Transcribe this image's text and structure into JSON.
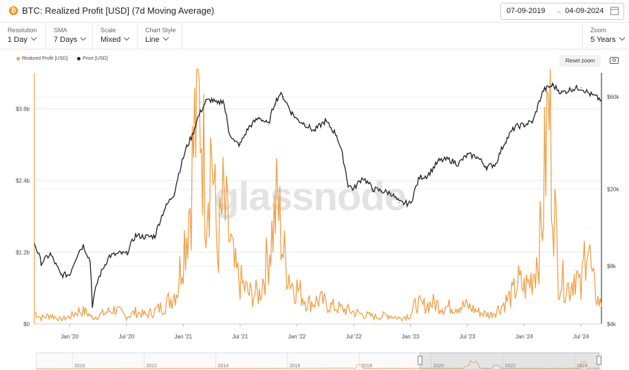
{
  "title": "BTC: Realized Profit [USD] (7d Moving Average)",
  "asset_icon": "btc-icon",
  "date_from": "07-09-2019",
  "date_to": "04-09-2024",
  "date_arrow": "→",
  "controls": [
    {
      "label": "Resolution",
      "value": "1 Day"
    },
    {
      "label": "SMA",
      "value": "7 Days"
    },
    {
      "label": "Scale",
      "value": "Mixed"
    },
    {
      "label": "Chart Style",
      "value": "Line"
    }
  ],
  "zoom": {
    "label": "Zoom",
    "value": "5 Years"
  },
  "reset_zoom": "Reset zoom",
  "watermark": "glassnode",
  "colors": {
    "profit": "#f0a045",
    "price": "#1e1e1e",
    "grid": "#e9e9e9"
  },
  "chart_data": {
    "type": "line",
    "title": "BTC: Realized Profit [USD] (7d Moving Average)",
    "legend": [
      "Realized Profit [USD]",
      "Price [USD]"
    ],
    "x_range": [
      2019.69,
      2024.68
    ],
    "x_ticks": [
      {
        "label": "Jan '20",
        "t": 2020.0
      },
      {
        "label": "Jul '20",
        "t": 2020.5
      },
      {
        "label": "Jan '21",
        "t": 2021.0
      },
      {
        "label": "Jul '21",
        "t": 2021.5
      },
      {
        "label": "Jan '22",
        "t": 2022.0
      },
      {
        "label": "Jul '22",
        "t": 2022.5
      },
      {
        "label": "Jan '23",
        "t": 2023.0
      },
      {
        "label": "Jul '23",
        "t": 2023.5
      },
      {
        "label": "Jan '24",
        "t": 2024.0
      },
      {
        "label": "Jul '24",
        "t": 2024.5
      }
    ],
    "y_left": {
      "min": 0,
      "max": 4200000000,
      "scale": "linear",
      "ticks": [
        {
          "label": "$0",
          "v": 0
        },
        {
          "label": "$1.2b",
          "v": 1200000000
        },
        {
          "label": "$2.4b",
          "v": 2400000000
        },
        {
          "label": "$3.6b",
          "v": 3600000000
        }
      ]
    },
    "y_right": {
      "min": 4000,
      "max": 80000,
      "scale": "log",
      "ticks": [
        {
          "label": "$4k",
          "v": 4000
        },
        {
          "label": "$8k",
          "v": 8000
        },
        {
          "label": "$20k",
          "v": 20000
        },
        {
          "label": "$60k",
          "v": 60000
        }
      ]
    },
    "series": [
      {
        "name": "Realized Profit [USD]",
        "axis": "left",
        "t": [
          2019.69,
          2019.75,
          2019.83,
          2019.92,
          2020.0,
          2020.08,
          2020.15,
          2020.2,
          2020.3,
          2020.4,
          2020.5,
          2020.58,
          2020.67,
          2020.75,
          2020.83,
          2020.9,
          2020.95,
          2021.0,
          2021.03,
          2021.06,
          2021.1,
          2021.15,
          2021.2,
          2021.25,
          2021.3,
          2021.35,
          2021.4,
          2021.45,
          2021.5,
          2021.58,
          2021.67,
          2021.72,
          2021.78,
          2021.83,
          2021.88,
          2021.95,
          2022.0,
          2022.1,
          2022.2,
          2022.3,
          2022.4,
          2022.5,
          2022.6,
          2022.7,
          2022.8,
          2022.9,
          2023.0,
          2023.05,
          2023.1,
          2023.2,
          2023.3,
          2023.4,
          2023.5,
          2023.6,
          2023.7,
          2023.8,
          2023.9,
          2023.95,
          2024.0,
          2024.05,
          2024.1,
          2024.15,
          2024.2,
          2024.22,
          2024.25,
          2024.3,
          2024.35,
          2024.4,
          2024.45,
          2024.5,
          2024.55,
          2024.6,
          2024.65,
          2024.68
        ],
        "v": [
          200000000.0,
          100000000.0,
          150000000.0,
          80000000.0,
          120000000.0,
          220000000.0,
          200000000.0,
          100000000.0,
          180000000.0,
          250000000.0,
          120000000.0,
          200000000.0,
          150000000.0,
          220000000.0,
          300000000.0,
          450000000.0,
          600000000.0,
          1300000000.0,
          1600000000.0,
          2100000000.0,
          3200000000.0,
          3700000000.0,
          2200000000.0,
          3000000000.0,
          1200000000.0,
          2000000000.0,
          1500000000.0,
          900000000.0,
          700000000.0,
          500000000.0,
          500000000.0,
          900000000.0,
          1500000000.0,
          2100000000.0,
          1200000000.0,
          700000000.0,
          600000000.0,
          350000000.0,
          400000000.0,
          300000000.0,
          250000000.0,
          200000000.0,
          150000000.0,
          120000000.0,
          150000000.0,
          100000000.0,
          150000000.0,
          350000000.0,
          300000000.0,
          350000000.0,
          280000000.0,
          300000000.0,
          300000000.0,
          200000000.0,
          150000000.0,
          300000000.0,
          500000000.0,
          700000000.0,
          600000000.0,
          700000000.0,
          1000000000.0,
          1500000000.0,
          3200000000.0,
          3600000000.0,
          2500000000.0,
          800000000.0,
          700000000.0,
          600000000.0,
          900000000.0,
          500000000.0,
          1600000000.0,
          700000000.0,
          400000000.0,
          300000000.0
        ]
      },
      {
        "name": "Price [USD]",
        "axis": "right",
        "t": [
          2019.69,
          2019.75,
          2019.83,
          2019.92,
          2020.0,
          2020.08,
          2020.12,
          2020.18,
          2020.2,
          2020.25,
          2020.35,
          2020.45,
          2020.5,
          2020.58,
          2020.67,
          2020.75,
          2020.83,
          2020.92,
          2021.0,
          2021.03,
          2021.08,
          2021.13,
          2021.2,
          2021.25,
          2021.3,
          2021.35,
          2021.4,
          2021.45,
          2021.5,
          2021.58,
          2021.67,
          2021.75,
          2021.8,
          2021.85,
          2021.88,
          2021.95,
          2022.0,
          2022.08,
          2022.15,
          2022.25,
          2022.35,
          2022.4,
          2022.45,
          2022.5,
          2022.58,
          2022.67,
          2022.75,
          2022.83,
          2022.9,
          2023.0,
          2023.08,
          2023.15,
          2023.25,
          2023.33,
          2023.42,
          2023.5,
          2023.58,
          2023.67,
          2023.75,
          2023.83,
          2023.92,
          2024.0,
          2024.08,
          2024.17,
          2024.25,
          2024.33,
          2024.42,
          2024.5,
          2024.58,
          2024.65,
          2024.68
        ],
        "v": [
          10500,
          8300,
          9200,
          7200,
          7200,
          9500,
          10200,
          8500,
          5000,
          6800,
          9000,
          9300,
          9200,
          11500,
          11300,
          11400,
          15500,
          19000,
          29000,
          33000,
          38000,
          47000,
          57000,
          58000,
          55000,
          58000,
          40000,
          35000,
          34000,
          42000,
          47000,
          43000,
          55000,
          62000,
          60000,
          50000,
          46000,
          43000,
          40000,
          45000,
          38000,
          30000,
          21000,
          20000,
          23000,
          20000,
          19500,
          19000,
          17000,
          16800,
          23000,
          23500,
          28000,
          28500,
          27000,
          30000,
          29500,
          26000,
          27000,
          35000,
          42000,
          43000,
          45000,
          65000,
          69000,
          63000,
          66000,
          67000,
          62000,
          59000,
          58000
        ]
      }
    ]
  },
  "navigator": {
    "labels": [
      {
        "label": "2010",
        "t": 2010
      },
      {
        "label": "2012",
        "t": 2012
      },
      {
        "label": "2014",
        "t": 2014
      },
      {
        "label": "2016",
        "t": 2016
      },
      {
        "label": "2018",
        "t": 2018
      },
      {
        "label": "2020",
        "t": 2020
      },
      {
        "label": "2022",
        "t": 2022
      },
      {
        "label": "2024",
        "t": 2024
      }
    ],
    "range": [
      2009.0,
      2024.75
    ],
    "selected": [
      2019.69,
      2024.68
    ]
  }
}
